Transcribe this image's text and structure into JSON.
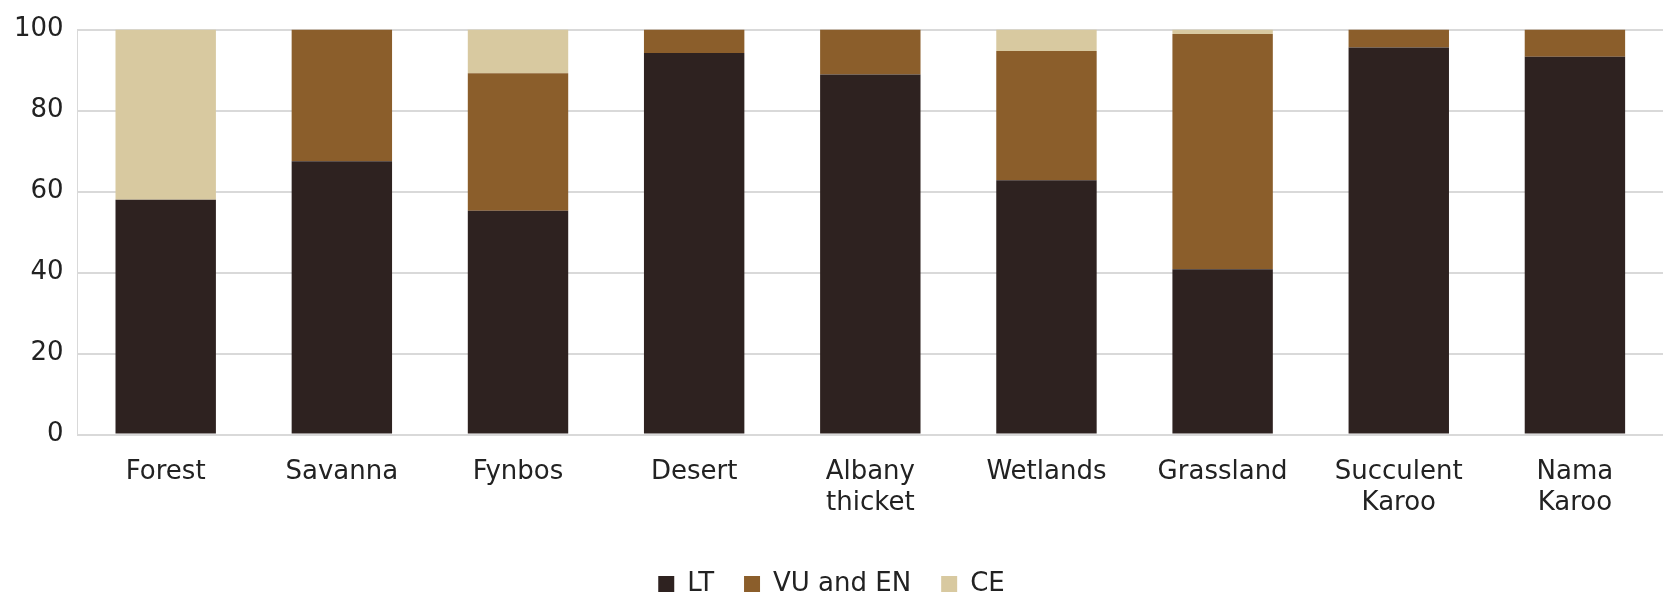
{
  "chart_data": {
    "type": "bar",
    "stacked": true,
    "categories": [
      "Forest",
      "Savanna",
      "Fynbos",
      "Desert",
      "Albany thicket",
      "Wetlands",
      "Grassland",
      "Succulent Karoo",
      "Nama Karoo"
    ],
    "series": [
      {
        "name": "LT",
        "color": "#2e2220",
        "values": [
          58,
          67.5,
          55.3,
          94.2,
          88.9,
          62.8,
          40.8,
          95.6,
          93.3
        ]
      },
      {
        "name": "VU and EN",
        "color": "#8b5e2b",
        "values": [
          0,
          32.5,
          33.9,
          5.8,
          11.1,
          31.9,
          58.1,
          4.4,
          6.7
        ]
      },
      {
        "name": "CE",
        "color": "#d8c9a0",
        "values": [
          42,
          0,
          10.8,
          0,
          0,
          5.3,
          1.1,
          0,
          0
        ]
      }
    ],
    "ylim": [
      0,
      100
    ],
    "yticks": [
      0,
      20,
      40,
      60,
      80,
      100
    ],
    "grid": "y",
    "legend": "bottom"
  }
}
